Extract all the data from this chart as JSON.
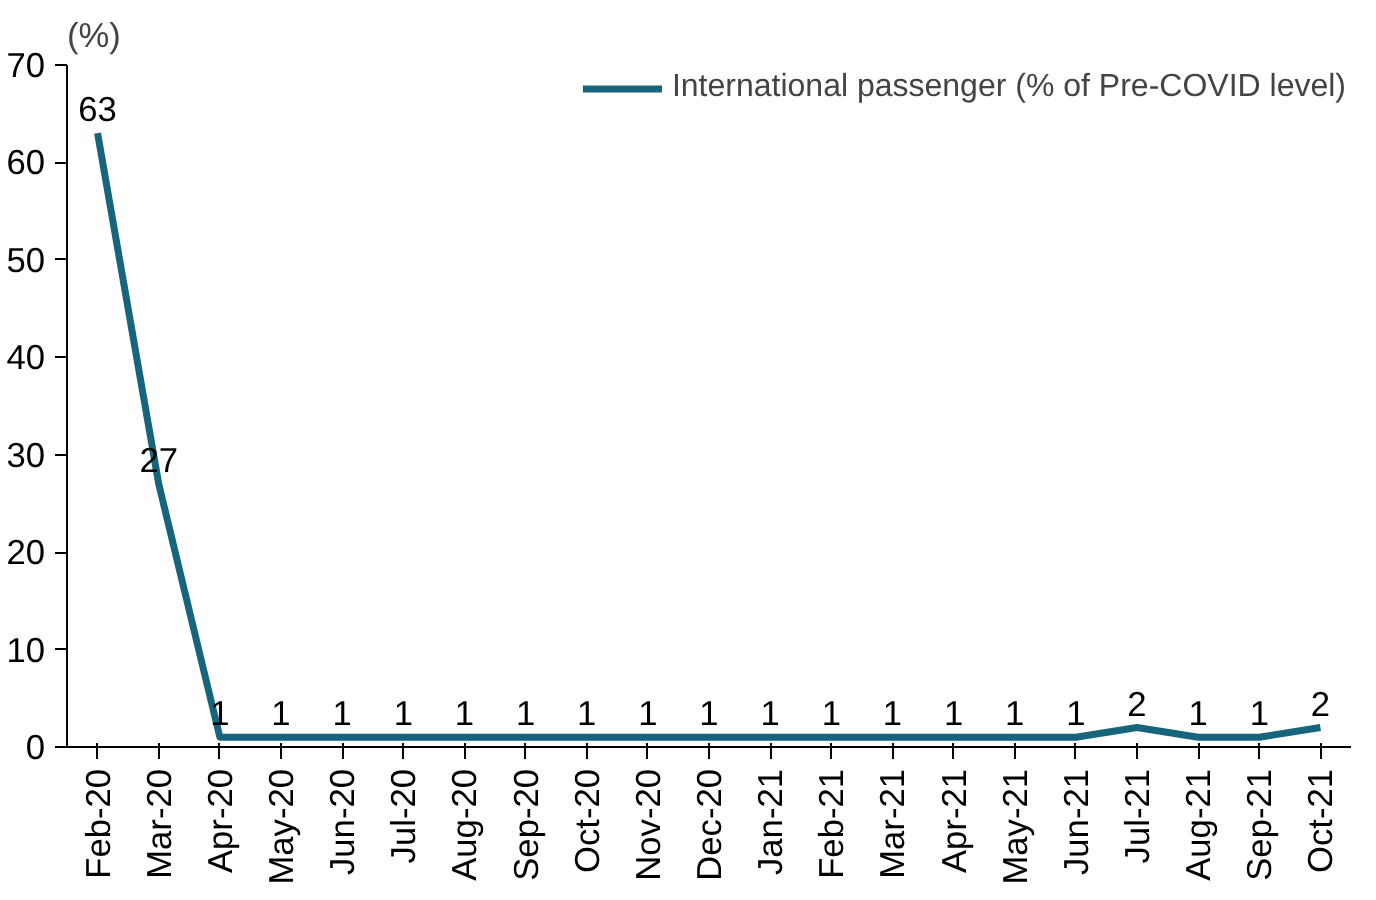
{
  "chart_data": {
    "type": "line",
    "ylabel": "(%)",
    "categories": [
      "Feb-20",
      "Mar-20",
      "Apr-20",
      "May-20",
      "Jun-20",
      "Jul-20",
      "Aug-20",
      "Sep-20",
      "Oct-20",
      "Nov-20",
      "Dec-20",
      "Jan-21",
      "Feb-21",
      "Mar-21",
      "Apr-21",
      "May-21",
      "Jun-21",
      "Jul-21",
      "Aug-21",
      "Sep-21",
      "Oct-21"
    ],
    "series": [
      {
        "name": "International passenger (% of Pre-COVID level)",
        "color": "#17657d",
        "values": [
          63,
          27,
          1,
          1,
          1,
          1,
          1,
          1,
          1,
          1,
          1,
          1,
          1,
          1,
          1,
          1,
          1,
          2,
          1,
          1,
          2
        ]
      }
    ],
    "ylim": [
      0,
      70
    ],
    "yticks": [
      0,
      10,
      20,
      30,
      40,
      50,
      60,
      70
    ],
    "data_labels": true,
    "legend": "top right",
    "grid": false
  }
}
